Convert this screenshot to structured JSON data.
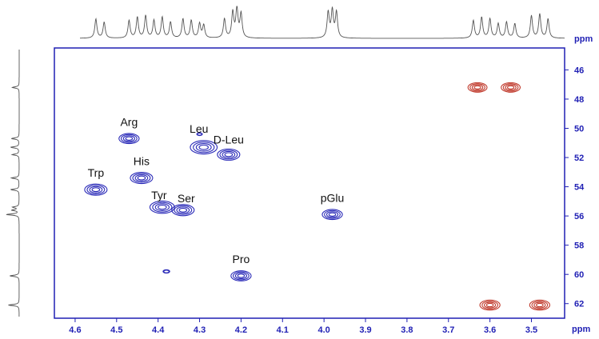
{
  "colors": {
    "axis": "#1f1fb4",
    "positive_contour": "#2a2ab8",
    "negative_contour": "#c0392b",
    "projection": "#555555"
  },
  "chart_data": {
    "type": "scatter",
    "subtype": "2D NMR HSQC contour plot",
    "title": "",
    "x_axis": {
      "label": "",
      "unit": "ppm",
      "range": [
        4.65,
        3.42
      ],
      "reversed": true,
      "ticks": [
        "4.6",
        "4.5",
        "4.4",
        "4.3",
        "4.2",
        "4.1",
        "4.0",
        "3.9",
        "3.8",
        "3.7",
        "3.6",
        "3.5"
      ]
    },
    "y_axis": {
      "label": "",
      "unit": "ppm",
      "range": [
        44.5,
        63.0
      ],
      "reversed": true,
      "position": "right",
      "ticks": [
        "46",
        "48",
        "50",
        "52",
        "54",
        "56",
        "58",
        "60",
        "62"
      ]
    },
    "grid": false,
    "peaks": [
      {
        "label": "Trp",
        "x": 4.55,
        "y": 54.2,
        "sign": "positive",
        "size": 1.0
      },
      {
        "label": "Arg",
        "x": 4.47,
        "y": 50.7,
        "sign": "positive",
        "size": 0.9
      },
      {
        "label": "His",
        "x": 4.44,
        "y": 53.4,
        "sign": "positive",
        "size": 1.0
      },
      {
        "label": "Tyr",
        "x": 4.39,
        "y": 55.4,
        "sign": "positive",
        "size": 1.1
      },
      {
        "label": "Ser",
        "x": 4.34,
        "y": 55.6,
        "sign": "positive",
        "size": 1.0
      },
      {
        "label": "Leu",
        "x": 4.29,
        "y": 51.3,
        "sign": "positive",
        "size": 1.2
      },
      {
        "label": "D-Leu",
        "x": 4.23,
        "y": 51.8,
        "sign": "positive",
        "size": 1.0
      },
      {
        "label": "Pro",
        "x": 4.2,
        "y": 60.1,
        "sign": "positive",
        "size": 0.9
      },
      {
        "label": "pGlu",
        "x": 3.98,
        "y": 55.9,
        "sign": "positive",
        "size": 0.9
      },
      {
        "label": "",
        "x": 4.38,
        "y": 59.8,
        "sign": "positive",
        "size": 0.3
      },
      {
        "label": "",
        "x": 4.3,
        "y": 50.4,
        "sign": "positive",
        "size": 0.25
      },
      {
        "label": "",
        "x": 3.63,
        "y": 47.2,
        "sign": "negative",
        "size": 0.85
      },
      {
        "label": "",
        "x": 3.55,
        "y": 47.2,
        "sign": "negative",
        "size": 0.85
      },
      {
        "label": "",
        "x": 3.6,
        "y": 62.1,
        "sign": "negative",
        "size": 0.9
      },
      {
        "label": "",
        "x": 3.48,
        "y": 62.1,
        "sign": "negative",
        "size": 0.9
      }
    ],
    "projection_1h_peaks": [
      {
        "x": 4.55,
        "h": 0.6
      },
      {
        "x": 4.53,
        "h": 0.5
      },
      {
        "x": 4.47,
        "h": 0.55
      },
      {
        "x": 4.45,
        "h": 0.65
      },
      {
        "x": 4.43,
        "h": 0.7
      },
      {
        "x": 4.41,
        "h": 0.55
      },
      {
        "x": 4.39,
        "h": 0.65
      },
      {
        "x": 4.37,
        "h": 0.5
      },
      {
        "x": 4.34,
        "h": 0.6
      },
      {
        "x": 4.32,
        "h": 0.55
      },
      {
        "x": 4.3,
        "h": 0.45
      },
      {
        "x": 4.29,
        "h": 0.4
      },
      {
        "x": 4.24,
        "h": 0.6
      },
      {
        "x": 4.22,
        "h": 0.8
      },
      {
        "x": 4.21,
        "h": 0.9
      },
      {
        "x": 4.2,
        "h": 0.75
      },
      {
        "x": 3.99,
        "h": 0.8
      },
      {
        "x": 3.98,
        "h": 0.85
      },
      {
        "x": 3.97,
        "h": 0.8
      },
      {
        "x": 3.64,
        "h": 0.55
      },
      {
        "x": 3.62,
        "h": 0.65
      },
      {
        "x": 3.6,
        "h": 0.6
      },
      {
        "x": 3.58,
        "h": 0.45
      },
      {
        "x": 3.56,
        "h": 0.5
      },
      {
        "x": 3.54,
        "h": 0.45
      },
      {
        "x": 3.5,
        "h": 0.7
      },
      {
        "x": 3.48,
        "h": 0.75
      },
      {
        "x": 3.46,
        "h": 0.6
      }
    ],
    "projection_13c_peaks": [
      {
        "y": 47.2,
        "h": 0.5
      },
      {
        "y": 50.7,
        "h": 0.55
      },
      {
        "y": 51.3,
        "h": 0.6
      },
      {
        "y": 51.8,
        "h": 0.5
      },
      {
        "y": 53.4,
        "h": 0.55
      },
      {
        "y": 54.2,
        "h": 0.6
      },
      {
        "y": 55.4,
        "h": 0.45
      },
      {
        "y": 55.6,
        "h": 0.5
      },
      {
        "y": 55.9,
        "h": 0.9
      },
      {
        "y": 60.1,
        "h": 0.65
      },
      {
        "y": 62.1,
        "h": 0.75
      }
    ]
  }
}
